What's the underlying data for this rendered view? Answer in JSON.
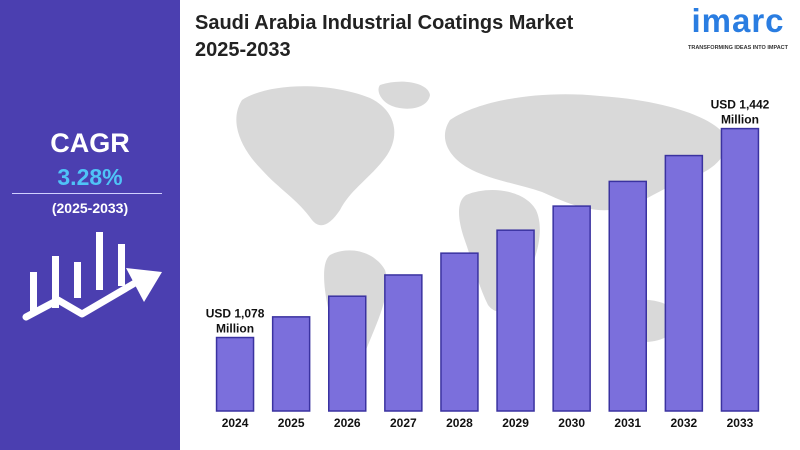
{
  "header": {
    "title_line1": "Saudi Arabia Industrial Coatings Market",
    "title_line2": "2025-2033"
  },
  "logo": {
    "name": "imarc",
    "tagline": "TRANSFORMING IDEAS INTO IMPACT"
  },
  "cagr": {
    "label": "CAGR",
    "value": "3.28%",
    "period": "(2025-2033)"
  },
  "colors": {
    "panel": "#4b3fb0",
    "cagr_value": "#4fc3f7",
    "bar_fill": "#7b6fdc",
    "bar_stroke": "#3a32a0",
    "map": "#d9d9d9",
    "logo": "#2a7de1"
  },
  "icons": [
    "growth-chart-icon",
    "world-map"
  ],
  "chart_data": {
    "type": "bar",
    "categories": [
      "2024",
      "2025",
      "2026",
      "2027",
      "2028",
      "2029",
      "2030",
      "2031",
      "2032",
      "2033"
    ],
    "values": [
      1078,
      1114,
      1150,
      1187,
      1225,
      1265,
      1307,
      1350,
      1395,
      1442
    ],
    "data_labels": [
      {
        "index": 0,
        "line1": "USD 1,078",
        "line2": "Million"
      },
      {
        "index": 9,
        "line1": "USD 1,442",
        "line2": "Million"
      }
    ],
    "title": "",
    "xlabel": "",
    "ylabel": "",
    "ylim": [
      950,
      1450
    ],
    "grid": false,
    "legend": "none"
  }
}
